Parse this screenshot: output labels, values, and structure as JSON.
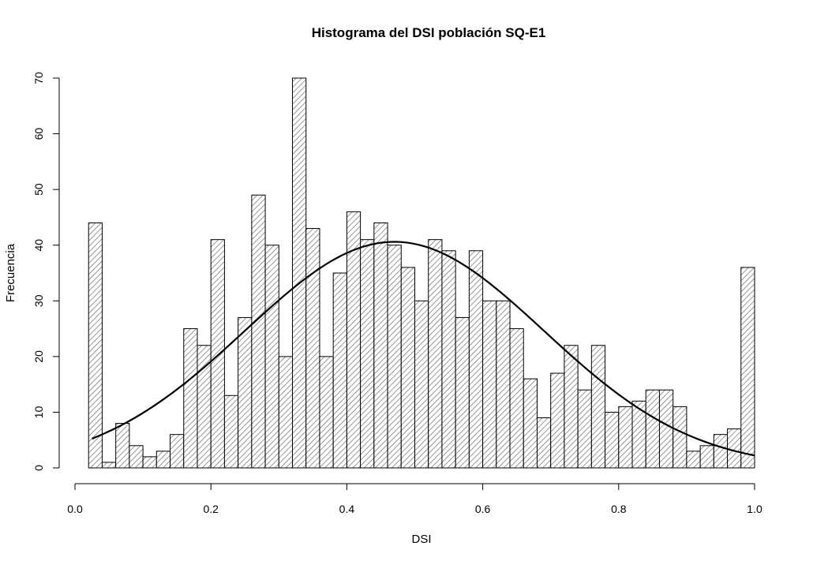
{
  "chart_data": {
    "type": "bar",
    "title": "Histograma del DSI población SQ-E1",
    "xlabel": "DSI",
    "ylabel": "Frecuencia",
    "xlim": [
      0.0,
      1.0
    ],
    "ylim": [
      0,
      70
    ],
    "x_ticks": [
      0.0,
      0.2,
      0.4,
      0.6,
      0.8,
      1.0
    ],
    "x_tick_labels": [
      "0.0",
      "0.2",
      "0.4",
      "0.6",
      "0.8",
      "1.0"
    ],
    "y_ticks": [
      0,
      10,
      20,
      30,
      40,
      50,
      60,
      70
    ],
    "y_tick_labels": [
      "0",
      "10",
      "20",
      "30",
      "40",
      "50",
      "60",
      "70"
    ],
    "bin_start": 0.02,
    "bin_width": 0.02,
    "values": [
      44,
      1,
      8,
      4,
      2,
      3,
      6,
      25,
      22,
      41,
      13,
      27,
      49,
      40,
      20,
      70,
      43,
      20,
      35,
      46,
      41,
      44,
      40,
      36,
      30,
      41,
      39,
      27,
      39,
      30,
      30,
      25,
      16,
      9,
      17,
      22,
      14,
      22,
      10,
      11,
      12,
      14,
      14,
      11,
      3,
      4,
      6,
      7,
      36
    ],
    "bar_fill": "hatched",
    "grid": false,
    "legend": "none",
    "overlay": {
      "type": "normal density curve",
      "mean": 0.47,
      "peak": 40.6,
      "sd": 0.22
    }
  }
}
